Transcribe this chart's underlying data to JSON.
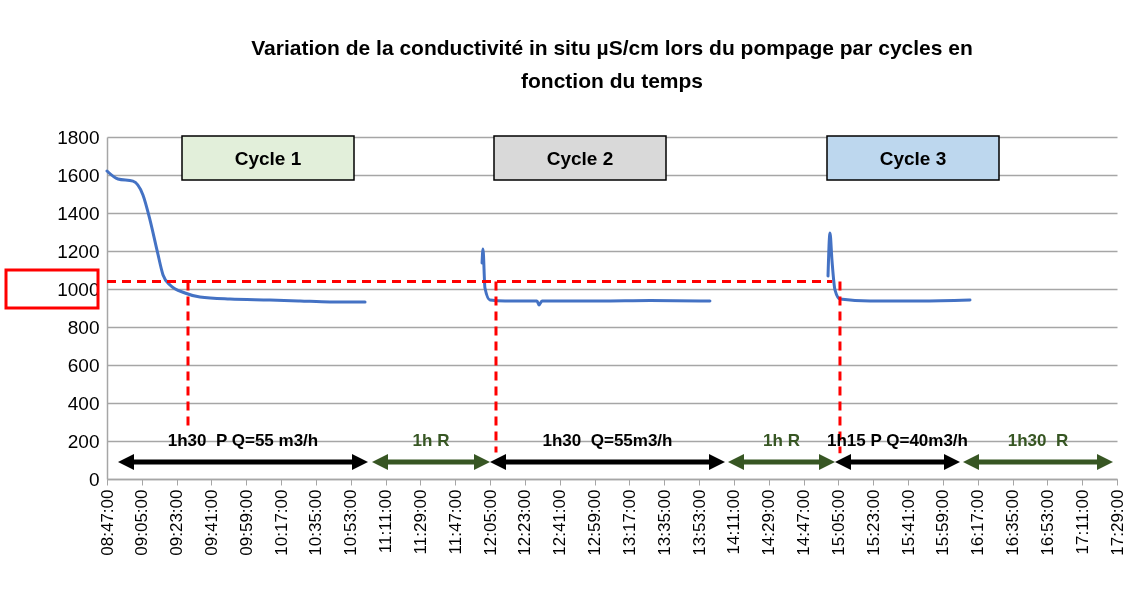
{
  "chart_data": {
    "type": "line",
    "title": "Variation de la conductivité in situ µS/cm lors du pompage par cycles en fonction du temps",
    "x": [
      8.7833,
      8.878,
      9.007,
      9.093,
      9.154,
      9.214,
      9.266,
      9.326,
      9.455,
      9.584,
      9.843,
      10.187,
      10.446,
      10.704,
      11.006,
      null,
      12.014,
      12.022,
      12.039,
      12.082,
      12.212,
      12.487,
      12.505,
      12.53,
      13.03,
      13.461,
      13.977,
      null,
      14.994,
      15.011,
      15.028,
      15.054,
      15.097,
      15.356,
      15.786,
      16.217
    ],
    "series": [
      {
        "color": "#4472c4",
        "line_style": "solid",
        "values": [
          1621,
          1579,
          1568,
          1495,
          1363,
          1205,
          1074,
          1021,
          979,
          958,
          947,
          942,
          937,
          932,
          932,
          null,
          1137,
          1210,
          1005,
          942,
          937,
          937,
          916,
          937,
          937,
          940,
          937,
          null,
          1068,
          1295,
          1152,
          995,
          947,
          937,
          937,
          942
        ]
      },
      {
        "type": "line",
        "color": "#ff0000",
        "line_style": "dashed",
        "x": [
          8.7833,
          15.03,
          null,
          9.481,
          9.481,
          null,
          12.134,
          12.134,
          null,
          15.097,
          15.097
        ],
        "values": [
          1040,
          1040,
          null,
          1040,
          250,
          null,
          1040,
          140,
          null,
          1040,
          135
        ]
      }
    ],
    "xlim": [
      8.7833,
      17.4833
    ],
    "xticks": [
      {
        "value": 8.7833,
        "label": "08:47:00"
      },
      {
        "value": 9.0833,
        "label": "09:05:00"
      },
      {
        "value": 9.3833,
        "label": "09:23:00"
      },
      {
        "value": 9.6833,
        "label": "09:41:00"
      },
      {
        "value": 9.9833,
        "label": "09:59:00"
      },
      {
        "value": 10.2833,
        "label": "10:17:00"
      },
      {
        "value": 10.5833,
        "label": "10:35:00"
      },
      {
        "value": 10.8833,
        "label": "10:53:00"
      },
      {
        "value": 11.1833,
        "label": "11:11:00"
      },
      {
        "value": 11.4833,
        "label": "11:29:00"
      },
      {
        "value": 11.7833,
        "label": "11:47:00"
      },
      {
        "value": 12.0833,
        "label": "12:05:00"
      },
      {
        "value": 12.3833,
        "label": "12:23:00"
      },
      {
        "value": 12.6833,
        "label": "12:41:00"
      },
      {
        "value": 12.9833,
        "label": "12:59:00"
      },
      {
        "value": 13.2833,
        "label": "13:17:00"
      },
      {
        "value": 13.5833,
        "label": "13:35:00"
      },
      {
        "value": 13.8833,
        "label": "13:53:00"
      },
      {
        "value": 14.1833,
        "label": "14:11:00"
      },
      {
        "value": 14.4833,
        "label": "14:29:00"
      },
      {
        "value": 14.7833,
        "label": "14:47:00"
      },
      {
        "value": 15.0833,
        "label": "15:05:00"
      },
      {
        "value": 15.3833,
        "label": "15:23:00"
      },
      {
        "value": 15.6833,
        "label": "15:41:00"
      },
      {
        "value": 15.9833,
        "label": "15:59:00"
      },
      {
        "value": 16.2833,
        "label": "16:17:00"
      },
      {
        "value": 16.5833,
        "label": "16:35:00"
      },
      {
        "value": 16.8833,
        "label": "16:53:00"
      },
      {
        "value": 17.1833,
        "label": "17:11:00"
      },
      {
        "value": 17.4833,
        "label": "17:29:00"
      }
    ],
    "ylim": [
      0,
      1800
    ],
    "yticks": [
      0,
      200,
      400,
      600,
      800,
      1000,
      1200,
      1400,
      1600,
      1800
    ],
    "grid": "y",
    "legend": false,
    "marker": "none",
    "annotations": [
      "Cycle 1",
      "Cycle 2",
      "Cycle 3",
      "1h30  P Q=55 m3/h",
      "1h R",
      "1h30  Q=55m3/h",
      "1h R",
      "1h15 P Q=40m3/h",
      "1h30  R"
    ]
  }
}
